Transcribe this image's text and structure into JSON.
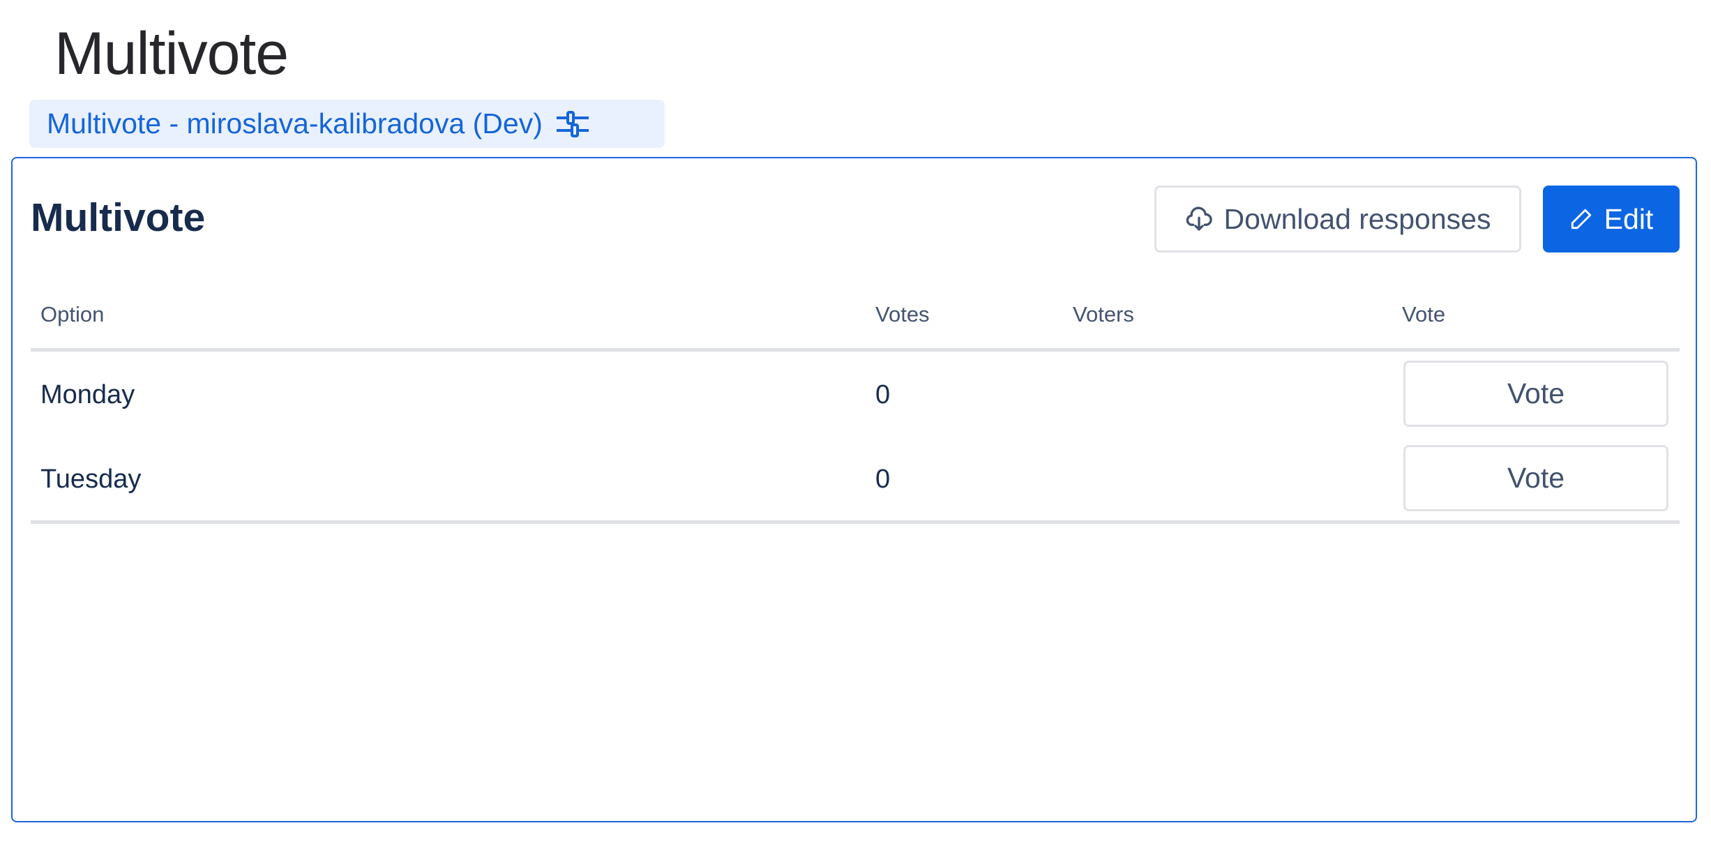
{
  "page": {
    "title": "Multivote"
  },
  "badge": {
    "label": "Multivote - miroslava-kalibradova (Dev)",
    "icon": "sliders-icon"
  },
  "card": {
    "title": "Multivote",
    "download_label": "Download responses",
    "edit_label": "Edit",
    "accent": "#0c66e4"
  },
  "table": {
    "headers": [
      "Option",
      "Votes",
      "Voters",
      "Vote"
    ],
    "rows": [
      {
        "option": "Monday",
        "votes": "0",
        "voters": "",
        "vote_label": "Vote"
      },
      {
        "option": "Tuesday",
        "votes": "0",
        "voters": "",
        "vote_label": "Vote"
      }
    ]
  }
}
